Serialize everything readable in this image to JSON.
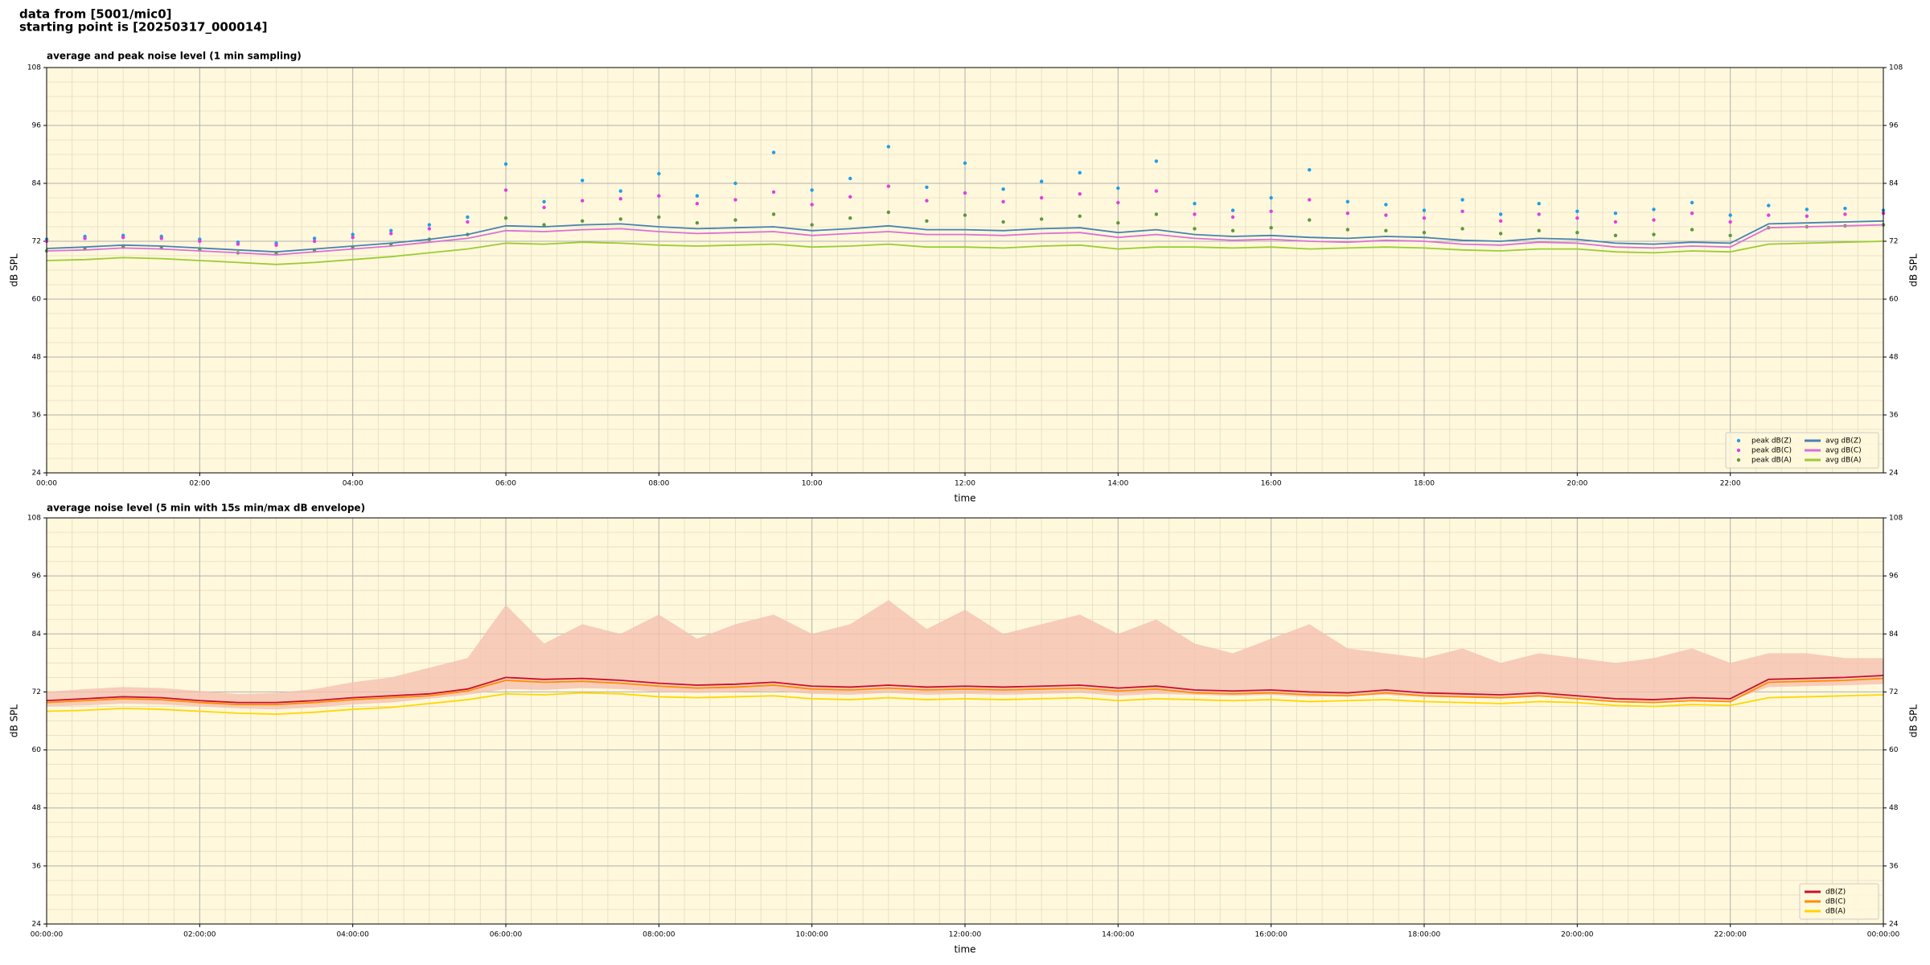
{
  "header": {
    "lines": [
      "data from [5001/mic0]",
      "starting point is [20250317_000014]"
    ]
  },
  "chart_data": [
    {
      "type": "line",
      "title": "average and peak noise level (1 min sampling)",
      "xlabel": "time",
      "ylabel": "dB SPL",
      "y2label": "dB SPL",
      "background": "#fff8dc",
      "grid": true,
      "minor_grid": true,
      "legend": "lower right",
      "legend_columns": 2,
      "xlim": [
        0,
        24
      ],
      "xticks": [
        {
          "value": 0,
          "label": "00:00"
        },
        {
          "value": 2,
          "label": "02:00"
        },
        {
          "value": 4,
          "label": "04:00"
        },
        {
          "value": 6,
          "label": "06:00"
        },
        {
          "value": 8,
          "label": "08:00"
        },
        {
          "value": 10,
          "label": "10:00"
        },
        {
          "value": 12,
          "label": "12:00"
        },
        {
          "value": 14,
          "label": "14:00"
        },
        {
          "value": 16,
          "label": "16:00"
        },
        {
          "value": 18,
          "label": "18:00"
        },
        {
          "value": 20,
          "label": "20:00"
        },
        {
          "value": 22,
          "label": "22:00"
        }
      ],
      "ylim": [
        24,
        108
      ],
      "yticks": [
        24,
        36,
        48,
        60,
        72,
        84,
        96,
        108
      ],
      "y2lim": [
        24,
        108
      ],
      "y2ticks": [
        24,
        36,
        48,
        60,
        72,
        84,
        96,
        108
      ],
      "x": [
        0,
        0.5,
        1,
        1.5,
        2,
        2.5,
        3,
        3.5,
        4,
        4.5,
        5,
        5.5,
        6,
        6.5,
        7,
        7.5,
        8,
        8.5,
        9,
        9.5,
        10,
        10.5,
        11,
        11.5,
        12,
        12.5,
        13,
        13.5,
        14,
        14.5,
        15,
        15.5,
        16,
        16.5,
        17,
        17.5,
        18,
        18.5,
        19,
        19.5,
        20,
        20.5,
        21,
        21.5,
        22,
        22.5,
        23,
        23.5,
        24
      ],
      "series": [
        {
          "name": "peak dB(Z)",
          "type": "scatter",
          "color": "#1f9ee8",
          "values": [
            72.4,
            73.0,
            73.2,
            73.0,
            72.4,
            71.8,
            71.6,
            72.6,
            73.4,
            74.2,
            75.4,
            77.0,
            88.0,
            80.2,
            84.6,
            82.4,
            86.0,
            81.4,
            84.0,
            90.4,
            82.6,
            85.0,
            91.6,
            83.2,
            88.2,
            82.8,
            84.4,
            86.2,
            83.0,
            88.6,
            79.8,
            78.4,
            81.0,
            86.8,
            80.2,
            79.6,
            78.4,
            80.6,
            77.6,
            79.8,
            78.2,
            77.8,
            78.6,
            80.0,
            77.4,
            79.4,
            78.6,
            78.8,
            78.4
          ]
        },
        {
          "name": "peak dB(C)",
          "type": "scatter",
          "color": "#e040e0",
          "values": [
            72.0,
            72.6,
            72.8,
            72.6,
            72.0,
            71.4,
            71.2,
            72.0,
            72.8,
            73.6,
            74.6,
            76.0,
            82.6,
            79.0,
            80.4,
            80.8,
            81.4,
            79.8,
            80.6,
            82.2,
            79.6,
            81.2,
            83.4,
            80.4,
            82.0,
            80.2,
            81.0,
            81.8,
            80.0,
            82.4,
            77.6,
            77.0,
            78.2,
            80.6,
            77.8,
            77.4,
            76.8,
            78.2,
            76.2,
            77.6,
            76.8,
            76.0,
            76.4,
            77.8,
            76.0,
            77.4,
            77.2,
            77.6,
            77.8
          ]
        },
        {
          "name": "peak dB(A)",
          "type": "scatter",
          "color": "#5a9a3a",
          "values": [
            70.0,
            70.4,
            70.8,
            70.6,
            70.2,
            69.6,
            69.4,
            70.0,
            70.6,
            71.4,
            72.4,
            73.4,
            76.8,
            75.4,
            76.2,
            76.6,
            77.0,
            75.8,
            76.4,
            77.6,
            75.4,
            76.8,
            78.0,
            76.2,
            77.4,
            76.0,
            76.6,
            77.2,
            75.8,
            77.6,
            74.6,
            74.2,
            74.8,
            76.4,
            74.4,
            74.2,
            73.8,
            74.6,
            73.6,
            74.2,
            73.8,
            73.2,
            73.4,
            74.4,
            73.2,
            74.8,
            75.0,
            75.2,
            75.4
          ]
        },
        {
          "name": "avg dB(Z)",
          "type": "line",
          "color": "#4682b4",
          "values": [
            70.5,
            70.8,
            71.2,
            71.0,
            70.6,
            70.2,
            69.8,
            70.4,
            71.0,
            71.6,
            72.4,
            73.4,
            75.2,
            75.0,
            75.4,
            75.6,
            75.0,
            74.6,
            74.8,
            75.0,
            74.2,
            74.6,
            75.2,
            74.4,
            74.4,
            74.2,
            74.6,
            74.8,
            73.8,
            74.4,
            73.4,
            73.0,
            73.2,
            72.8,
            72.6,
            73.0,
            72.8,
            72.2,
            72.0,
            72.6,
            72.4,
            71.6,
            71.4,
            71.8,
            71.6,
            75.6,
            75.8,
            76.0,
            76.2
          ]
        },
        {
          "name": "avg dB(C)",
          "type": "line",
          "color": "#da70d6",
          "values": [
            70.0,
            70.2,
            70.6,
            70.4,
            70.0,
            69.6,
            69.2,
            69.8,
            70.4,
            71.0,
            71.8,
            72.6,
            74.2,
            74.0,
            74.4,
            74.6,
            74.0,
            73.6,
            73.8,
            74.0,
            73.2,
            73.6,
            74.0,
            73.4,
            73.4,
            73.2,
            73.6,
            73.8,
            72.8,
            73.4,
            72.6,
            72.2,
            72.4,
            72.0,
            71.8,
            72.2,
            72.0,
            71.4,
            71.2,
            71.8,
            71.6,
            70.8,
            70.6,
            71.0,
            70.8,
            74.8,
            75.0,
            75.2,
            75.4
          ]
        },
        {
          "name": "avg dB(A)",
          "type": "line",
          "color": "#9acd32",
          "values": [
            68.0,
            68.2,
            68.6,
            68.4,
            68.0,
            67.6,
            67.2,
            67.6,
            68.2,
            68.8,
            69.6,
            70.4,
            71.6,
            71.4,
            71.8,
            71.6,
            71.2,
            71.0,
            71.2,
            71.4,
            70.8,
            71.0,
            71.4,
            70.8,
            70.8,
            70.6,
            71.0,
            71.2,
            70.4,
            70.8,
            70.8,
            70.6,
            70.8,
            70.4,
            70.6,
            70.8,
            70.6,
            70.2,
            70.0,
            70.4,
            70.4,
            69.8,
            69.6,
            70.0,
            69.8,
            71.4,
            71.6,
            71.8,
            72.0
          ]
        }
      ]
    },
    {
      "type": "line",
      "title": "average noise level (5 min with 15s min/max dB envelope)",
      "xlabel": "time",
      "ylabel": "dB SPL",
      "y2label": "dB SPL",
      "background": "#fff8dc",
      "grid": true,
      "minor_grid": true,
      "legend": "lower right",
      "legend_columns": 1,
      "xlim": [
        0,
        24
      ],
      "xticks": [
        {
          "value": 0,
          "label": "00:00:00"
        },
        {
          "value": 2,
          "label": "02:00:00"
        },
        {
          "value": 4,
          "label": "04:00:00"
        },
        {
          "value": 6,
          "label": "06:00:00"
        },
        {
          "value": 8,
          "label": "08:00:00"
        },
        {
          "value": 10,
          "label": "10:00:00"
        },
        {
          "value": 12,
          "label": "12:00:00"
        },
        {
          "value": 14,
          "label": "14:00:00"
        },
        {
          "value": 16,
          "label": "16:00:00"
        },
        {
          "value": 18,
          "label": "18:00:00"
        },
        {
          "value": 20,
          "label": "20:00:00"
        },
        {
          "value": 22,
          "label": "22:00:00"
        },
        {
          "value": 24,
          "label": "00:00:00"
        }
      ],
      "ylim": [
        24,
        108
      ],
      "yticks": [
        24,
        36,
        48,
        60,
        72,
        84,
        96,
        108
      ],
      "y2lim": [
        24,
        108
      ],
      "y2ticks": [
        24,
        36,
        48,
        60,
        72,
        84,
        96,
        108
      ],
      "x": [
        0,
        0.5,
        1,
        1.5,
        2,
        2.5,
        3,
        3.5,
        4,
        4.5,
        5,
        5.5,
        6,
        6.5,
        7,
        7.5,
        8,
        8.5,
        9,
        9.5,
        10,
        10.5,
        11,
        11.5,
        12,
        12.5,
        13,
        13.5,
        14,
        14.5,
        15,
        15.5,
        16,
        16.5,
        17,
        17.5,
        18,
        18.5,
        19,
        19.5,
        20,
        20.5,
        21,
        21.5,
        22,
        22.5,
        23,
        23.5,
        24
      ],
      "series": [
        {
          "name": "dB(Z)",
          "type": "line",
          "color": "#c8102e",
          "values": [
            70.2,
            70.6,
            71.0,
            70.8,
            70.2,
            69.8,
            69.8,
            70.2,
            70.8,
            71.2,
            71.6,
            72.6,
            75.0,
            74.6,
            74.8,
            74.4,
            73.8,
            73.4,
            73.6,
            74.0,
            73.2,
            73.0,
            73.4,
            73.0,
            73.2,
            73.0,
            73.2,
            73.4,
            72.8,
            73.2,
            72.4,
            72.2,
            72.4,
            72.0,
            71.8,
            72.4,
            71.8,
            71.6,
            71.4,
            71.8,
            71.2,
            70.6,
            70.4,
            70.8,
            70.6,
            74.6,
            74.8,
            75.0,
            75.4
          ],
          "envelope": {
            "color": "#f5c0b0",
            "high": [
              72.0,
              72.6,
              73.0,
              72.8,
              72.2,
              71.6,
              71.8,
              72.6,
              74.0,
              75.0,
              77.0,
              79.0,
              90.0,
              82.0,
              86.0,
              84.0,
              88.0,
              83.0,
              86.0,
              88.0,
              84.0,
              86.0,
              91.0,
              85.0,
              89.0,
              84.0,
              86.0,
              88.0,
              84.0,
              87.0,
              82.0,
              80.0,
              83.0,
              86.0,
              81.0,
              80.0,
              79.0,
              81.0,
              78.0,
              80.0,
              79.0,
              78.0,
              79.0,
              81.0,
              78.0,
              80.0,
              80.0,
              79.0,
              79.0
            ],
            "low": [
              69.0,
              69.2,
              69.6,
              69.4,
              69.0,
              68.6,
              68.4,
              68.8,
              69.4,
              69.8,
              70.6,
              71.4,
              72.6,
              72.4,
              72.8,
              72.6,
              72.0,
              71.8,
              72.0,
              72.2,
              71.6,
              71.4,
              71.8,
              71.4,
              71.6,
              71.4,
              71.6,
              71.8,
              71.2,
              71.6,
              71.4,
              71.2,
              71.4,
              71.0,
              71.2,
              71.4,
              71.0,
              70.8,
              70.6,
              71.0,
              70.8,
              70.2,
              70.0,
              70.4,
              70.2,
              73.0,
              73.2,
              73.4,
              73.6
            ]
          }
        },
        {
          "name": "dB(C)",
          "type": "line",
          "color": "#ff8c00",
          "values": [
            69.8,
            70.2,
            70.6,
            70.4,
            69.8,
            69.4,
            69.4,
            69.8,
            70.4,
            70.8,
            71.2,
            72.2,
            74.4,
            74.0,
            74.2,
            73.8,
            73.2,
            72.8,
            73.0,
            73.4,
            72.6,
            72.4,
            72.8,
            72.4,
            72.6,
            72.4,
            72.6,
            72.8,
            72.2,
            72.6,
            71.8,
            71.6,
            71.8,
            71.4,
            71.2,
            71.8,
            71.2,
            71.0,
            70.8,
            71.2,
            70.6,
            70.0,
            69.8,
            70.2,
            70.0,
            74.0,
            74.2,
            74.4,
            74.8
          ]
        },
        {
          "name": "dB(A)",
          "type": "line",
          "color": "#ffd700",
          "values": [
            68.0,
            68.2,
            68.6,
            68.4,
            68.0,
            67.6,
            67.4,
            67.8,
            68.4,
            68.8,
            69.6,
            70.4,
            71.6,
            71.4,
            71.8,
            71.6,
            71.0,
            70.8,
            71.0,
            71.2,
            70.6,
            70.4,
            70.8,
            70.4,
            70.6,
            70.4,
            70.6,
            70.8,
            70.2,
            70.6,
            70.4,
            70.2,
            70.4,
            70.0,
            70.2,
            70.4,
            70.0,
            69.8,
            69.6,
            70.0,
            69.8,
            69.2,
            69.0,
            69.4,
            69.2,
            70.8,
            71.0,
            71.2,
            71.4
          ]
        }
      ]
    }
  ]
}
